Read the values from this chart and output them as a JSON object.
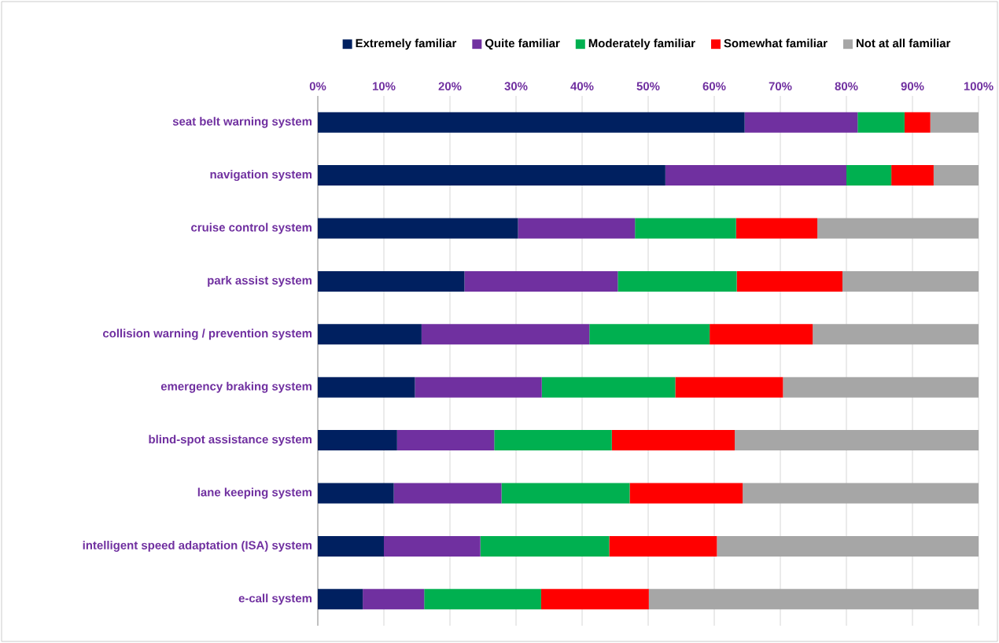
{
  "chart_data": {
    "type": "bar",
    "orientation": "horizontal",
    "stacked": true,
    "grid": "x",
    "legend": "top",
    "categories": [
      "seat belt warning system",
      "navigation system",
      "cruise control system",
      "park assist system",
      "collision warning / prevention system",
      "emergency braking system",
      "blind-spot assistance system",
      "lane keeping system",
      "intelligent speed adaptation (ISA) system",
      "e-call system"
    ],
    "series": [
      {
        "name": "Extremely familiar",
        "color": "#002060",
        "values": [
          64.6,
          52.6,
          30.3,
          22.2,
          15.7,
          14.7,
          12.0,
          11.5,
          10.0,
          6.8
        ]
      },
      {
        "name": "Quite familiar",
        "color": "#7030a0",
        "values": [
          17.1,
          27.4,
          17.7,
          23.2,
          25.4,
          19.2,
          14.7,
          16.3,
          14.6,
          9.3
        ]
      },
      {
        "name": "Moderately familiar",
        "color": "#00b050",
        "values": [
          7.1,
          6.8,
          15.3,
          18.0,
          18.2,
          20.2,
          17.8,
          19.4,
          19.5,
          17.7
        ]
      },
      {
        "name": "Somewhat familiar",
        "color": "#ff0000",
        "values": [
          3.9,
          6.4,
          12.3,
          16.0,
          15.6,
          16.3,
          18.6,
          17.1,
          16.3,
          16.3
        ]
      },
      {
        "name": "Not at all familiar",
        "color": "#a6a6a6",
        "values": [
          7.3,
          6.8,
          24.4,
          20.6,
          25.1,
          29.6,
          36.9,
          35.7,
          39.6,
          49.9
        ]
      }
    ],
    "xlim": [
      0,
      100
    ],
    "xticks": [
      {
        "value": 0,
        "label": "0%"
      },
      {
        "value": 10,
        "label": "10%"
      },
      {
        "value": 20,
        "label": "20%"
      },
      {
        "value": 30,
        "label": "30%"
      },
      {
        "value": 40,
        "label": "40%"
      },
      {
        "value": 50,
        "label": "50%"
      },
      {
        "value": 60,
        "label": "60%"
      },
      {
        "value": 70,
        "label": "70%"
      },
      {
        "value": 80,
        "label": "80%"
      },
      {
        "value": 90,
        "label": "90%"
      },
      {
        "value": 100,
        "label": "100%"
      }
    ]
  }
}
